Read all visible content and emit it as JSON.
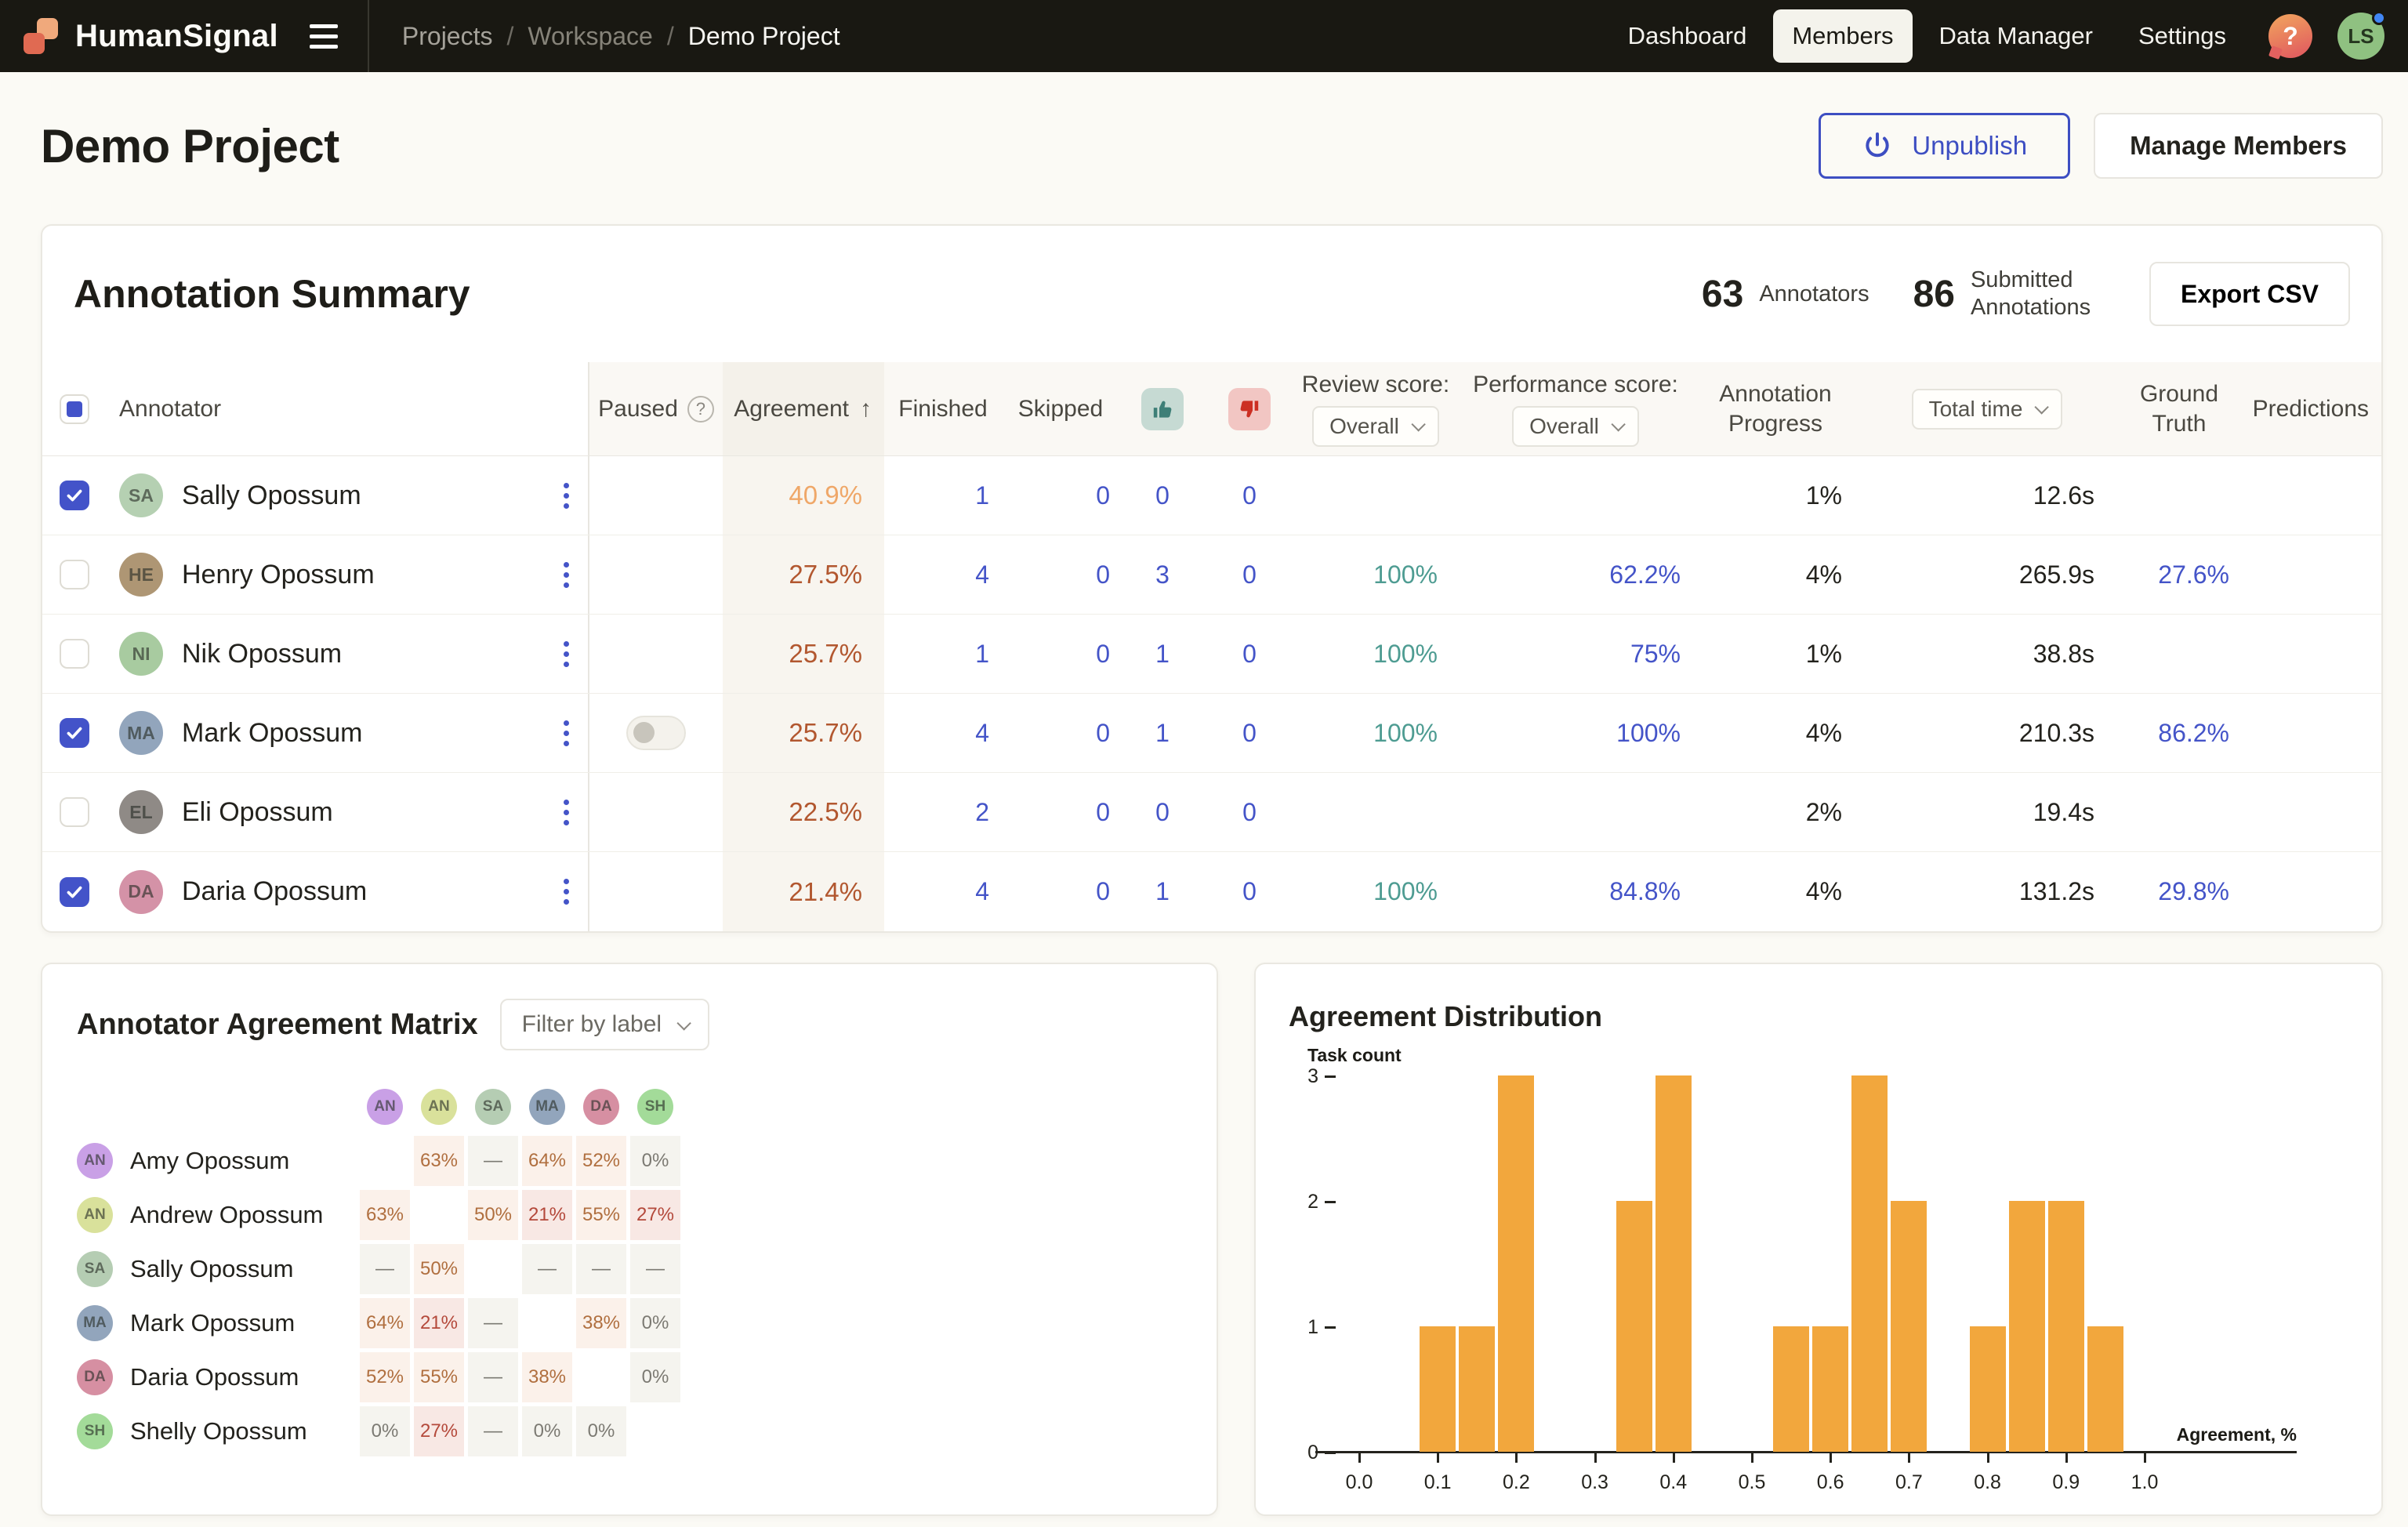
{
  "topbar": {
    "brand": "HumanSignal",
    "breadcrumb_separator": "/",
    "breadcrumbs": [
      "Projects",
      "Workspace",
      "Demo Project"
    ],
    "nav": [
      {
        "label": "Dashboard",
        "active": false
      },
      {
        "label": "Members",
        "active": true
      },
      {
        "label": "Data Manager",
        "active": false
      },
      {
        "label": "Settings",
        "active": false
      }
    ],
    "help_label": "?",
    "avatar_initials": "LS"
  },
  "page": {
    "title": "Demo Project",
    "unpublish_label": "Unpublish",
    "manage_members_label": "Manage Members"
  },
  "summary": {
    "title": "Annotation Summary",
    "annotators_count": "63",
    "annotators_label": "Annotators",
    "submitted_count": "86",
    "submitted_label": "Submitted Annotations",
    "export_label": "Export CSV",
    "columns": {
      "annotator": "Annotator",
      "paused": "Paused",
      "paused_hint": "?",
      "agreement": "Agreement",
      "sort_arrow": "↑",
      "finished": "Finished",
      "skipped": "Skipped",
      "review_score": "Review score:",
      "performance_score": "Performance score:",
      "annotation_progress": "Annotation Progress",
      "total_time": "Total time",
      "ground_truth": "Ground Truth",
      "predictions": "Predictions"
    },
    "review_filter": "Overall",
    "performance_filter": "Overall",
    "rows": [
      {
        "name": "Sally Opossum",
        "initials": "SA",
        "avatar_color": "#B5D0B2",
        "checked": true,
        "paused_toggle": false,
        "agreement": "40.9%",
        "agreement_tone": "tone-orange",
        "finished": "1",
        "skipped": "0",
        "accepted": "0",
        "rejected": "0",
        "review_score": "",
        "performance_score": "",
        "progress": "1%",
        "total_time": "12.6s",
        "ground_truth": "",
        "predictions": ""
      },
      {
        "name": "Henry Opossum",
        "initials": "HE",
        "avatar_color": "#AE9674",
        "checked": false,
        "paused_toggle": false,
        "agreement": "27.5%",
        "agreement_tone": "tone-rust",
        "finished": "4",
        "skipped": "0",
        "accepted": "3",
        "rejected": "0",
        "review_score": "100%",
        "performance_score": "62.2%",
        "progress": "4%",
        "total_time": "265.9s",
        "ground_truth": "27.6%",
        "predictions": ""
      },
      {
        "name": "Nik Opossum",
        "initials": "NI",
        "avatar_color": "#A8CBA0",
        "checked": false,
        "paused_toggle": false,
        "agreement": "25.7%",
        "agreement_tone": "tone-rust",
        "finished": "1",
        "skipped": "0",
        "accepted": "1",
        "rejected": "0",
        "review_score": "100%",
        "performance_score": "75%",
        "progress": "1%",
        "total_time": "38.8s",
        "ground_truth": "",
        "predictions": ""
      },
      {
        "name": "Mark Opossum",
        "initials": "MA",
        "avatar_color": "#92A5BC",
        "checked": true,
        "paused_toggle": true,
        "agreement": "25.7%",
        "agreement_tone": "tone-rust",
        "finished": "4",
        "skipped": "0",
        "accepted": "1",
        "rejected": "0",
        "review_score": "100%",
        "performance_score": "100%",
        "progress": "4%",
        "total_time": "210.3s",
        "ground_truth": "86.2%",
        "predictions": ""
      },
      {
        "name": "Eli Opossum",
        "initials": "EL",
        "avatar_color": "#8F8A86",
        "checked": false,
        "paused_toggle": false,
        "agreement": "22.5%",
        "agreement_tone": "tone-rust",
        "finished": "2",
        "skipped": "0",
        "accepted": "0",
        "rejected": "0",
        "review_score": "",
        "performance_score": "",
        "progress": "2%",
        "total_time": "19.4s",
        "ground_truth": "",
        "predictions": ""
      },
      {
        "name": "Daria Opossum",
        "initials": "DA",
        "avatar_color": "#D492A7",
        "checked": true,
        "paused_toggle": false,
        "agreement": "21.4%",
        "agreement_tone": "tone-rust",
        "finished": "4",
        "skipped": "0",
        "accepted": "1",
        "rejected": "0",
        "review_score": "100%",
        "performance_score": "84.8%",
        "progress": "4%",
        "total_time": "131.2s",
        "ground_truth": "29.8%",
        "predictions": ""
      }
    ]
  },
  "matrix": {
    "title": "Annotator Agreement Matrix",
    "filter_label": "Filter by label",
    "columns": [
      {
        "initials": "AN",
        "color": "#C9A0E6"
      },
      {
        "initials": "AN",
        "color": "#D9E19B"
      },
      {
        "initials": "SA",
        "color": "#B5CDB3"
      },
      {
        "initials": "MA",
        "color": "#92A5BC"
      },
      {
        "initials": "DA",
        "color": "#D68FA2"
      },
      {
        "initials": "SH",
        "color": "#A3DB99"
      }
    ],
    "rows": [
      {
        "name": "Amy Opossum",
        "initials": "AN",
        "color": "#C9A0E6",
        "values": [
          null,
          "63%",
          "—",
          "64%",
          "52%",
          "0%"
        ]
      },
      {
        "name": "Andrew Opossum",
        "initials": "AN",
        "color": "#D9E19B",
        "values": [
          "63%",
          null,
          "50%",
          "21%",
          "55%",
          "27%"
        ]
      },
      {
        "name": "Sally Opossum",
        "initials": "SA",
        "color": "#B5CDB3",
        "values": [
          "—",
          "50%",
          null,
          "—",
          "—",
          "—"
        ]
      },
      {
        "name": "Mark Opossum",
        "initials": "MA",
        "color": "#92A5BC",
        "values": [
          "64%",
          "21%",
          "—",
          null,
          "38%",
          "0%"
        ]
      },
      {
        "name": "Daria Opossum",
        "initials": "DA",
        "color": "#D68FA2",
        "values": [
          "52%",
          "55%",
          "—",
          "38%",
          null,
          "0%"
        ]
      },
      {
        "name": "Shelly Opossum",
        "initials": "SH",
        "color": "#A3DB99",
        "values": [
          "0%",
          "27%",
          "—",
          "0%",
          "0%",
          null
        ]
      }
    ]
  },
  "chart_data": {
    "type": "bar",
    "title": "Agreement Distribution",
    "xlabel": "Agreement, %",
    "ylabel": "Task count",
    "x": [
      0.1,
      0.15,
      0.2,
      0.35,
      0.4,
      0.55,
      0.6,
      0.65,
      0.7,
      0.8,
      0.85,
      0.9,
      0.95
    ],
    "values": [
      1,
      1,
      3,
      2,
      3,
      1,
      1,
      3,
      2,
      1,
      2,
      2,
      1
    ],
    "bin_width": 0.05,
    "xticks": [
      0.0,
      0.1,
      0.2,
      0.3,
      0.4,
      0.5,
      0.6,
      0.7,
      0.8,
      0.9,
      1.0
    ],
    "yticks": [
      0,
      1,
      2,
      3
    ],
    "xlim": [
      0,
      1
    ],
    "ylim": [
      0,
      3
    ],
    "bar_color": "#F2A73D",
    "grid": false,
    "legend": false
  }
}
